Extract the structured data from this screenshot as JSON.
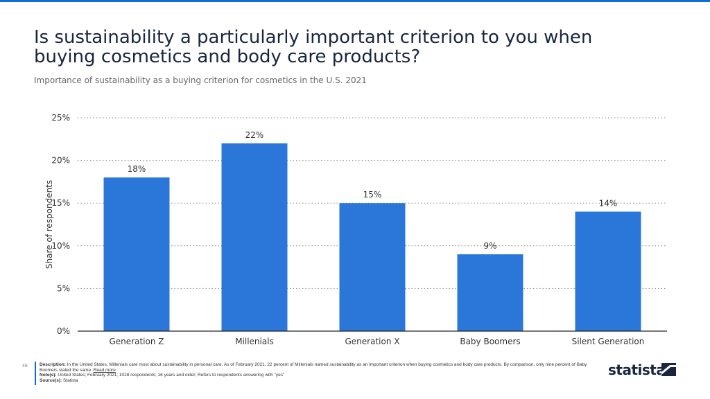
{
  "title": "Is sustainability a particularly important criterion to you when buying cosmetics and body care products?",
  "subtitle": "Importance of sustainability as a buying criterion for cosmetics in the U.S. 2021",
  "colors": {
    "bar": "#2b77d9",
    "accent": "#0f6bd6",
    "grid": "#8a8a8a",
    "text": "#1a2540"
  },
  "chart_data": {
    "type": "bar",
    "categories": [
      "Generation Z",
      "Millenials",
      "Generation X",
      "Baby Boomers",
      "Silent Generation"
    ],
    "values": [
      18,
      22,
      15,
      9,
      14
    ],
    "value_labels": [
      "18%",
      "22%",
      "15%",
      "9%",
      "14%"
    ],
    "yticks": [
      0,
      5,
      10,
      15,
      20,
      25
    ],
    "ytick_labels": [
      "0%",
      "5%",
      "10%",
      "15%",
      "20%",
      "25%"
    ],
    "ylim": [
      0,
      25
    ],
    "ylabel": "Share of respondents",
    "xlabel": "",
    "grid": true
  },
  "footer": {
    "page_number": "48",
    "description_label": "Description:",
    "description": "In the United States, Millenials care most about sustainability in personal care. As of February 2021, 22 percent of Millenials named sustainability as an important criterion when buying cosmetics and body care products. By comparison, only nine percent of Baby Boomers stated the same.",
    "read_more": "Read more",
    "notes_label": "Note(s):",
    "notes": "United States; February 2021; 1028 respondents; 16 years and older; Refers to respondents answering with \"yes\"",
    "source_label": "Source(s):",
    "source": "Statista"
  },
  "logo": {
    "text": "statista",
    "icon": "statista-logo-icon"
  }
}
